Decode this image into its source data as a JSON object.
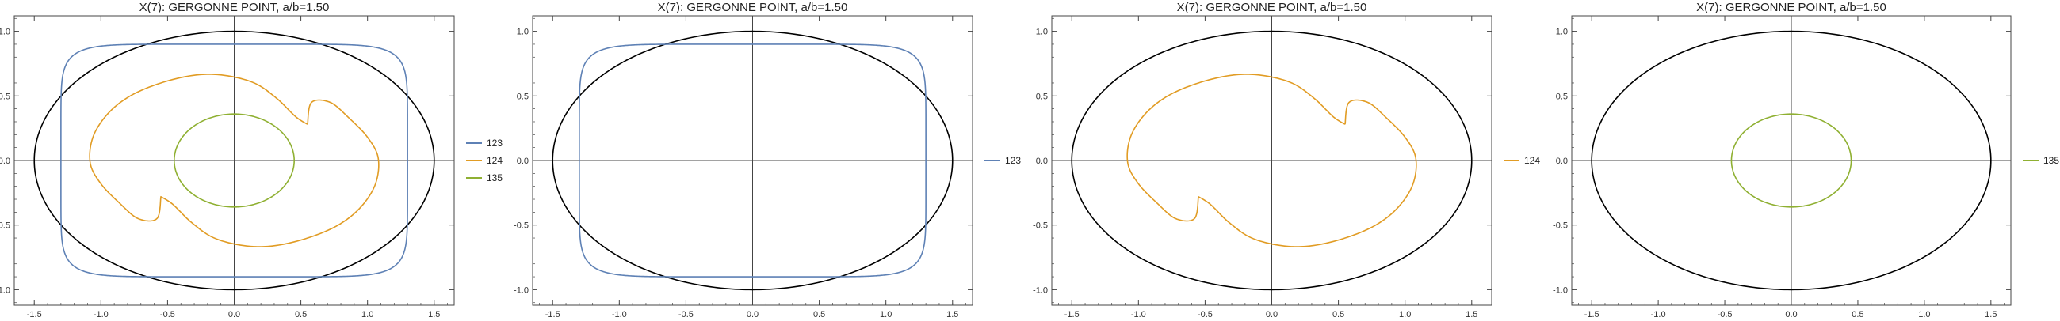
{
  "colors": {
    "ellipse": "#000000",
    "axes": "#444444",
    "frame": "#444444",
    "tick_label": "#333333",
    "title": "#222222",
    "series_123": "#5E81B5",
    "series_124": "#E19C24",
    "series_135": "#8FB032"
  },
  "chart_data": [
    {
      "type": "line",
      "title": "X(7): GERGONNE POINT, a/b=1.50",
      "xlabel": "",
      "ylabel": "",
      "xlim": [
        -1.65,
        1.65
      ],
      "ylim": [
        -1.12,
        1.12
      ],
      "x_ticks": [
        "-1.5",
        "-1.0",
        "-0.5",
        "0.0",
        "0.5",
        "1.0",
        "1.5"
      ],
      "y_ticks": [
        "-1.0",
        "-0.5",
        "0.0",
        "0.5",
        "1.0"
      ],
      "grid": false,
      "legend": "right",
      "series": [
        {
          "name": "123",
          "color": "#5E81B5",
          "shape": "superellipse",
          "params": {
            "a": 1.3,
            "b": 0.9
          }
        },
        {
          "name": "124",
          "color": "#E19C24",
          "shape": "cusped-loop",
          "params": {
            "cusps": [
              [
                0.55,
                0.28
              ],
              [
                -0.55,
                -0.28
              ]
            ]
          }
        },
        {
          "name": "135",
          "color": "#8FB032",
          "shape": "ellipse",
          "params": {
            "a": 0.45,
            "b": 0.36
          }
        }
      ]
    },
    {
      "type": "line",
      "title": "X(7): GERGONNE POINT, a/b=1.50",
      "xlabel": "",
      "ylabel": "",
      "xlim": [
        -1.65,
        1.65
      ],
      "ylim": [
        -1.12,
        1.12
      ],
      "x_ticks": [
        "-1.5",
        "-1.0",
        "-0.5",
        "0.0",
        "0.5",
        "1.0",
        "1.5"
      ],
      "y_ticks": [
        "-1.0",
        "-0.5",
        "0.0",
        "0.5",
        "1.0"
      ],
      "grid": false,
      "legend": "right",
      "series": [
        {
          "name": "123",
          "color": "#5E81B5",
          "shape": "superellipse",
          "params": {
            "a": 1.3,
            "b": 0.9
          }
        }
      ]
    },
    {
      "type": "line",
      "title": "X(7): GERGONNE POINT, a/b=1.50",
      "xlabel": "",
      "ylabel": "",
      "xlim": [
        -1.65,
        1.65
      ],
      "ylim": [
        -1.12,
        1.12
      ],
      "x_ticks": [
        "-1.5",
        "-1.0",
        "-0.5",
        "0.0",
        "0.5",
        "1.0",
        "1.5"
      ],
      "y_ticks": [
        "-1.0",
        "-0.5",
        "0.0",
        "0.5",
        "1.0"
      ],
      "grid": false,
      "legend": "right",
      "series": [
        {
          "name": "124",
          "color": "#E19C24",
          "shape": "cusped-loop",
          "params": {
            "cusps": [
              [
                0.55,
                0.28
              ],
              [
                -0.55,
                -0.28
              ]
            ]
          }
        }
      ]
    },
    {
      "type": "line",
      "title": "X(7): GERGONNE POINT, a/b=1.50",
      "xlabel": "",
      "ylabel": "",
      "xlim": [
        -1.65,
        1.65
      ],
      "ylim": [
        -1.12,
        1.12
      ],
      "x_ticks": [
        "-1.5",
        "-1.0",
        "-0.5",
        "0.0",
        "0.5",
        "1.0",
        "1.5"
      ],
      "y_ticks": [
        "-1.0",
        "-0.5",
        "0.0",
        "0.5",
        "1.0"
      ],
      "grid": false,
      "legend": "right",
      "series": [
        {
          "name": "135",
          "color": "#8FB032",
          "shape": "ellipse",
          "params": {
            "a": 0.45,
            "b": 0.36
          }
        }
      ]
    }
  ],
  "reference_ellipse": {
    "a": 1.5,
    "b": 1.0
  }
}
